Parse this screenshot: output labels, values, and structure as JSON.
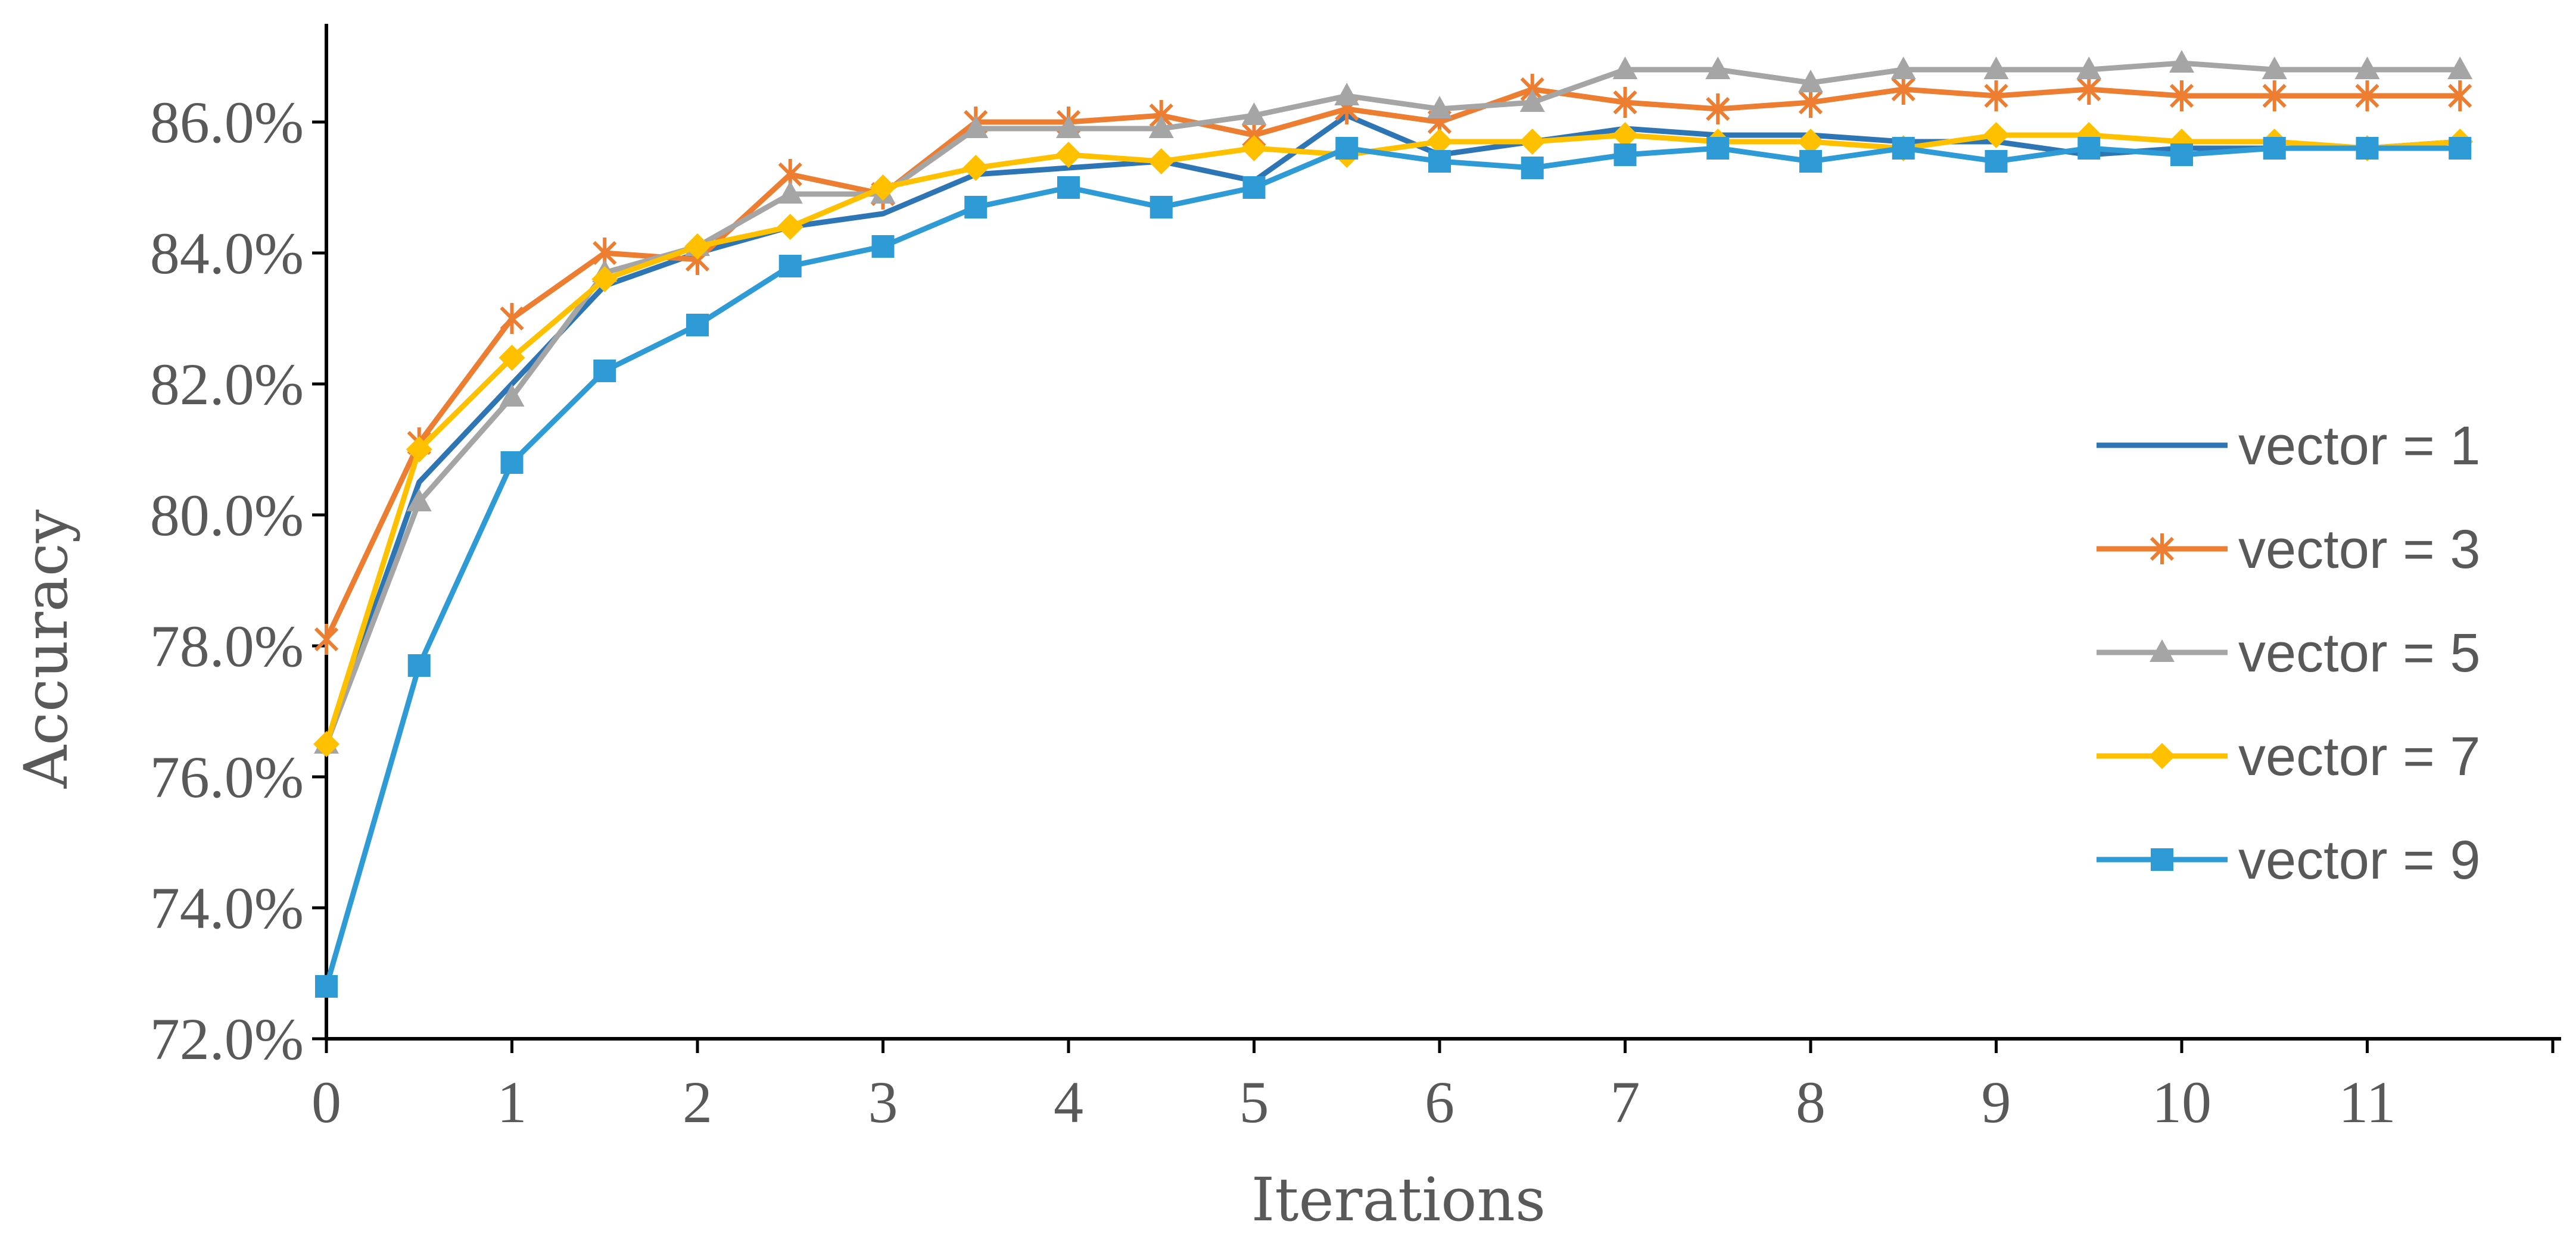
{
  "chart_data": {
    "type": "line",
    "title": "",
    "xlabel": "Iterations",
    "ylabel": "Accuracy",
    "x": [
      0,
      0.5,
      1,
      1.5,
      2,
      2.5,
      3,
      3.5,
      4,
      4.5,
      5,
      5.5,
      6,
      6.5,
      7,
      7.5,
      8,
      8.5,
      9,
      9.5,
      10,
      10.5,
      11,
      11.5
    ],
    "x_ticks": [
      0,
      1,
      2,
      3,
      4,
      5,
      6,
      7,
      8,
      9,
      10,
      11
    ],
    "x_tick_labels": [
      "0",
      "1",
      "2",
      "3",
      "4",
      "5",
      "6",
      "7",
      "8",
      "9",
      "10",
      "11"
    ],
    "xlim": [
      0,
      12
    ],
    "y_ticks": [
      72,
      74,
      76,
      78,
      80,
      82,
      84,
      86
    ],
    "y_tick_labels": [
      "72.0%",
      "74.0%",
      "76.0%",
      "78.0%",
      "80.0%",
      "82.0%",
      "84.0%",
      "86.0%"
    ],
    "ylim": [
      72,
      87.5
    ],
    "grid": false,
    "legend_position": "right",
    "series": [
      {
        "name": "vector = 1",
        "color": "#2e75b6",
        "marker": "none",
        "values": [
          76.5,
          80.5,
          82.0,
          83.5,
          84.0,
          84.4,
          84.6,
          85.2,
          85.3,
          85.4,
          85.1,
          86.1,
          85.5,
          85.7,
          85.9,
          85.8,
          85.8,
          85.7,
          85.7,
          85.5,
          85.6,
          85.6,
          85.6,
          85.7
        ]
      },
      {
        "name": "vector = 3",
        "color": "#ed7d31",
        "marker": "star",
        "values": [
          78.1,
          81.1,
          83.0,
          84.0,
          83.9,
          85.2,
          84.9,
          86.0,
          86.0,
          86.1,
          85.8,
          86.2,
          86.0,
          86.5,
          86.3,
          86.2,
          86.3,
          86.5,
          86.4,
          86.5,
          86.4,
          86.4,
          86.4,
          86.4
        ]
      },
      {
        "name": "vector = 5",
        "color": "#a5a5a5",
        "marker": "triangle",
        "values": [
          76.5,
          80.2,
          81.8,
          83.7,
          84.1,
          84.9,
          84.9,
          85.9,
          85.9,
          85.9,
          86.1,
          86.4,
          86.2,
          86.3,
          86.8,
          86.8,
          86.6,
          86.8,
          86.8,
          86.8,
          86.9,
          86.8,
          86.8,
          86.8
        ]
      },
      {
        "name": "vector = 7",
        "color": "#ffc000",
        "marker": "diamond",
        "values": [
          76.5,
          81.0,
          82.4,
          83.6,
          84.1,
          84.4,
          85.0,
          85.3,
          85.5,
          85.4,
          85.6,
          85.5,
          85.7,
          85.7,
          85.8,
          85.7,
          85.7,
          85.6,
          85.8,
          85.8,
          85.7,
          85.7,
          85.6,
          85.7
        ]
      },
      {
        "name": "vector = 9",
        "color": "#2e9bd6",
        "marker": "square",
        "values": [
          72.8,
          77.7,
          80.8,
          82.2,
          82.9,
          83.8,
          84.1,
          84.7,
          85.0,
          84.7,
          85.0,
          85.6,
          85.4,
          85.3,
          85.5,
          85.6,
          85.4,
          85.6,
          85.4,
          85.6,
          85.5,
          85.6,
          85.6,
          85.6
        ]
      }
    ]
  }
}
